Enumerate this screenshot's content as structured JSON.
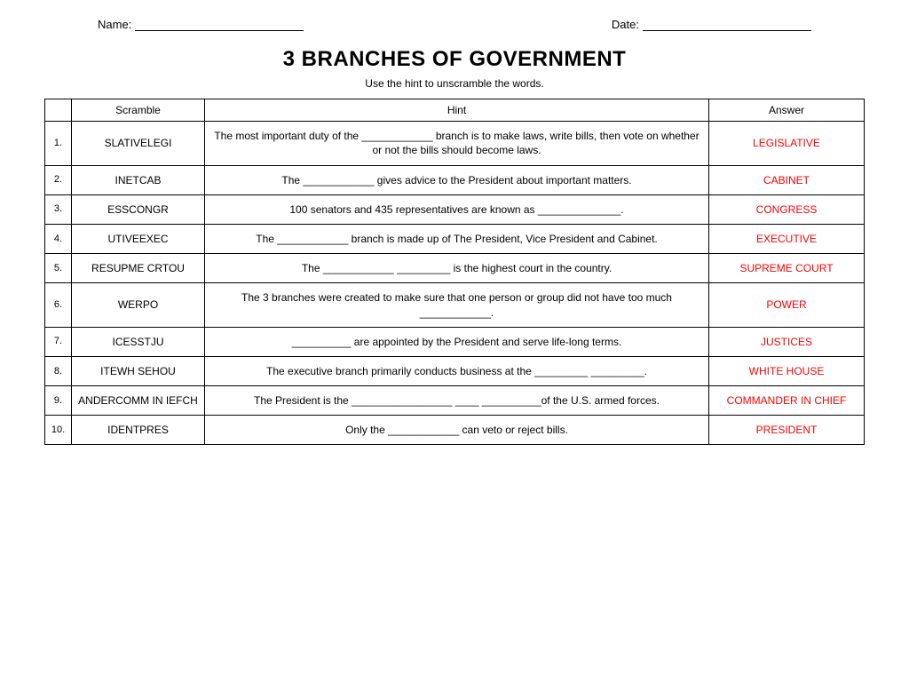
{
  "header": {
    "name_label": "Name:",
    "date_label": "Date:"
  },
  "title": "3 BRANCHES OF GOVERNMENT",
  "instructions": "Use the hint to unscramble the words.",
  "columns": {
    "num": "",
    "scramble": "Scramble",
    "hint": "Hint",
    "answer": "Answer"
  },
  "rows": [
    {
      "n": "1.",
      "scramble": "SLATIVELEGI",
      "hint": "The most important duty of the ____________ branch is to make laws, write bills, then vote on whether or not the bills should become laws.",
      "answer": "LEGISLATIVE"
    },
    {
      "n": "2.",
      "scramble": "INETCAB",
      "hint": "The ____________ gives advice to the President about important matters.",
      "answer": "CABINET"
    },
    {
      "n": "3.",
      "scramble": "ESSCONGR",
      "hint": "100 senators and 435 representatives are known as ______________.",
      "answer": "CONGRESS"
    },
    {
      "n": "4.",
      "scramble": "UTIVEEXEC",
      "hint": "The ____________ branch is made up of The President, Vice President and Cabinet.",
      "answer": "EXECUTIVE"
    },
    {
      "n": "5.",
      "scramble": "RESUPME CRTOU",
      "hint": "The ____________ _________ is the highest court in the country.",
      "answer": "SUPREME COURT"
    },
    {
      "n": "6.",
      "scramble": "WERPO",
      "hint": "The 3 branches were created to make sure that one person or group did not have too much ____________.",
      "answer": "POWER"
    },
    {
      "n": "7.",
      "scramble": "ICESSTJU",
      "hint": "__________ are appointed by the President and serve life-long terms.",
      "answer": "JUSTICES"
    },
    {
      "n": "8.",
      "scramble": "ITEWH SEHOU",
      "hint": "The executive branch primarily conducts business at the _________ _________.",
      "answer": "WHITE HOUSE"
    },
    {
      "n": "9.",
      "scramble": "ANDERCOMM IN IEFCH",
      "hint": "The President is the _________________ ____ __________of the U.S. armed forces.",
      "answer": "COMMANDER IN CHIEF"
    },
    {
      "n": "10.",
      "scramble": "IDENTPRES",
      "hint": "Only the ____________ can veto or reject bills.",
      "answer": "PRESIDENT"
    }
  ],
  "styles": {
    "answer_color": "#ff0000",
    "border_color": "#000000",
    "background_color": "#ffffff",
    "body_fontsize": 12,
    "title_fontsize": 24,
    "col_widths": {
      "num": 30,
      "scramble": 150,
      "answer": 175
    }
  }
}
